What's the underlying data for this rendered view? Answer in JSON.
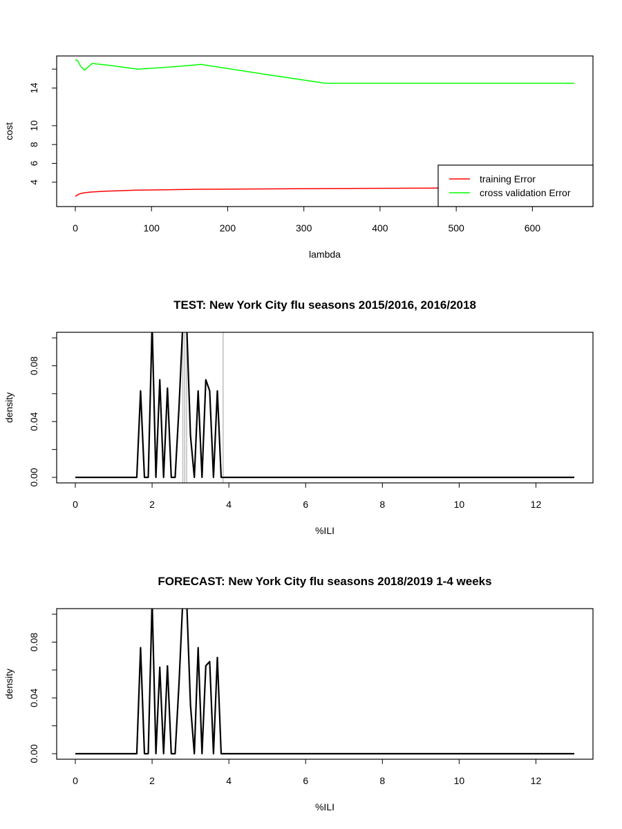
{
  "chart_data": [
    {
      "type": "line",
      "title": "",
      "xlabel": "lambda",
      "ylabel": "cost",
      "xlim": [
        0,
        655
      ],
      "ylim": [
        2.0,
        17.4
      ],
      "xticks": [
        "0",
        "100",
        "200",
        "300",
        "400",
        "500",
        "600"
      ],
      "yticks": [
        "4",
        "6",
        "8",
        "10",
        "14"
      ],
      "legend_position": "bottom-right",
      "series": [
        {
          "name": "training Error",
          "color": "#ff0000",
          "x": [
            0,
            5,
            10,
            20,
            40,
            80,
            160,
            320,
            480,
            655
          ],
          "y": [
            2.5,
            2.75,
            2.85,
            2.95,
            3.05,
            3.15,
            3.25,
            3.32,
            3.38,
            3.45
          ]
        },
        {
          "name": "cross validation Error",
          "color": "#00ff00",
          "x": [
            0,
            3,
            7,
            12,
            22,
            45,
            82,
            120,
            165,
            245,
            328,
            400,
            500,
            655
          ],
          "y": [
            17.0,
            16.9,
            16.3,
            15.9,
            16.6,
            16.4,
            16.0,
            16.2,
            16.5,
            15.5,
            14.5,
            14.5,
            14.5,
            14.5
          ]
        }
      ]
    },
    {
      "type": "line",
      "title": "TEST: New York City  flu seasons 2015/2016, 2016/2018",
      "xlabel": "%ILI",
      "ylabel": "density",
      "xlim": [
        0,
        13
      ],
      "ylim": [
        0,
        0.104
      ],
      "xticks": [
        "0",
        "2",
        "4",
        "6",
        "8",
        "10",
        "12"
      ],
      "yticks": [
        "0.00",
        "0.04",
        "0.08"
      ],
      "grey_lines_x": [
        2.8,
        2.85,
        2.9,
        3.85
      ],
      "series": [
        {
          "name": "",
          "color": "#000000",
          "x": [
            0,
            1.6,
            1.7,
            1.8,
            1.9,
            2.0,
            2.1,
            2.2,
            2.3,
            2.4,
            2.5,
            2.6,
            2.7,
            2.8,
            2.9,
            3.0,
            3.1,
            3.2,
            3.3,
            3.4,
            3.5,
            3.6,
            3.7,
            3.8,
            13
          ],
          "y": [
            0,
            0,
            0.062,
            0,
            0,
            0.11,
            0,
            0.07,
            0,
            0.064,
            0,
            0,
            0.05,
            0.11,
            0.11,
            0.03,
            0,
            0.062,
            0,
            0.07,
            0.062,
            0,
            0.062,
            0,
            0
          ]
        }
      ]
    },
    {
      "type": "line",
      "title": "FORECAST: New York City flu seasons 2018/2019 1-4 weeks",
      "xlabel": "%ILI",
      "ylabel": "density",
      "xlim": [
        0,
        13
      ],
      "ylim": [
        0,
        0.104
      ],
      "xticks": [
        "0",
        "2",
        "4",
        "6",
        "8",
        "10",
        "12"
      ],
      "yticks": [
        "0.00",
        "0.04",
        "0.08"
      ],
      "series": [
        {
          "name": "",
          "color": "#000000",
          "x": [
            0,
            1.6,
            1.7,
            1.8,
            1.9,
            2.0,
            2.1,
            2.2,
            2.3,
            2.4,
            2.5,
            2.6,
            2.7,
            2.8,
            2.9,
            3.0,
            3.1,
            3.2,
            3.3,
            3.4,
            3.5,
            3.6,
            3.7,
            3.8,
            13
          ],
          "y": [
            0,
            0,
            0.076,
            0,
            0,
            0.11,
            0,
            0.062,
            0,
            0.063,
            0,
            0,
            0.05,
            0.11,
            0.11,
            0.035,
            0,
            0.076,
            0,
            0.063,
            0.066,
            0,
            0.069,
            0,
            0
          ]
        }
      ]
    }
  ]
}
